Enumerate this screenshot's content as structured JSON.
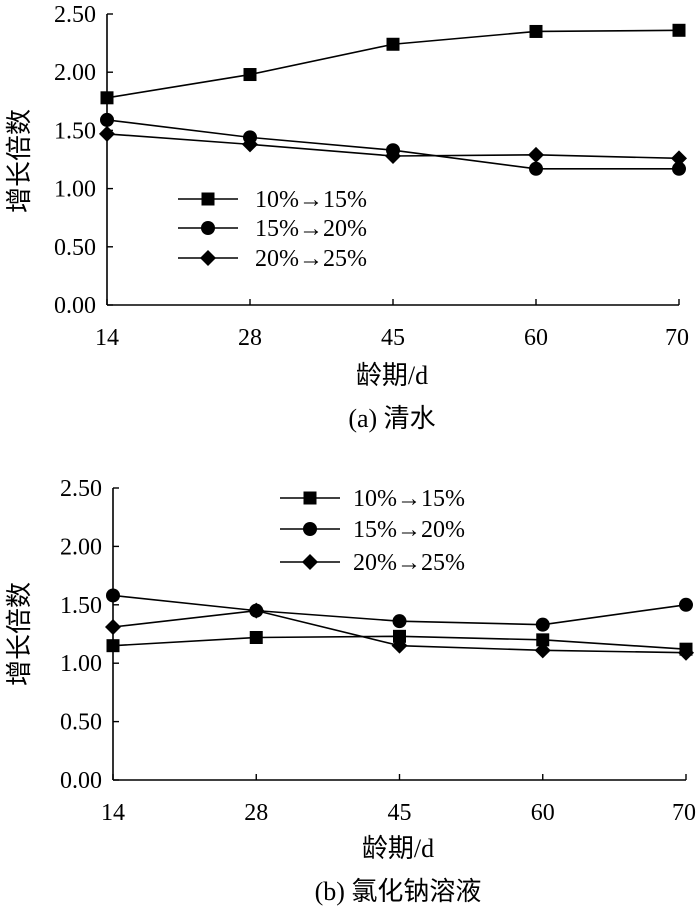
{
  "chart_data": [
    {
      "type": "line",
      "title": "",
      "caption": "(a) 清水",
      "xlabel": "龄期/d",
      "ylabel": "增长倍数",
      "categories": [
        "14",
        "28",
        "45",
        "60",
        "70"
      ],
      "ylim": [
        0,
        2.5
      ],
      "yticks": [
        "0.00",
        "0.50",
        "1.00",
        "1.50",
        "2.00",
        "2.50"
      ],
      "grid": false,
      "legend_position": "center-left",
      "series": [
        {
          "name": "10%→15%",
          "marker": "square",
          "values": [
            1.78,
            1.98,
            2.24,
            2.35,
            2.36
          ]
        },
        {
          "name": "15%→20%",
          "marker": "circle",
          "values": [
            1.59,
            1.44,
            1.33,
            1.17,
            1.17
          ]
        },
        {
          "name": "20%→25%",
          "marker": "diamond",
          "values": [
            1.47,
            1.38,
            1.28,
            1.29,
            1.26
          ]
        }
      ]
    },
    {
      "type": "line",
      "title": "",
      "caption": "(b) 氯化钠溶液",
      "xlabel": "龄期/d",
      "ylabel": "增长倍数",
      "categories": [
        "14",
        "28",
        "45",
        "60",
        "70"
      ],
      "ylim": [
        0,
        2.5
      ],
      "yticks": [
        "0.00",
        "0.50",
        "1.00",
        "1.50",
        "2.00",
        "2.50"
      ],
      "grid": false,
      "legend_position": "top-center",
      "series": [
        {
          "name": "10%→15%",
          "marker": "square",
          "values": [
            1.15,
            1.22,
            1.23,
            1.2,
            1.12
          ]
        },
        {
          "name": "15%→20%",
          "marker": "circle",
          "values": [
            1.58,
            1.45,
            1.36,
            1.33,
            1.5
          ]
        },
        {
          "name": "20%→25%",
          "marker": "diamond",
          "values": [
            1.31,
            1.45,
            1.15,
            1.11,
            1.09
          ]
        }
      ]
    }
  ]
}
